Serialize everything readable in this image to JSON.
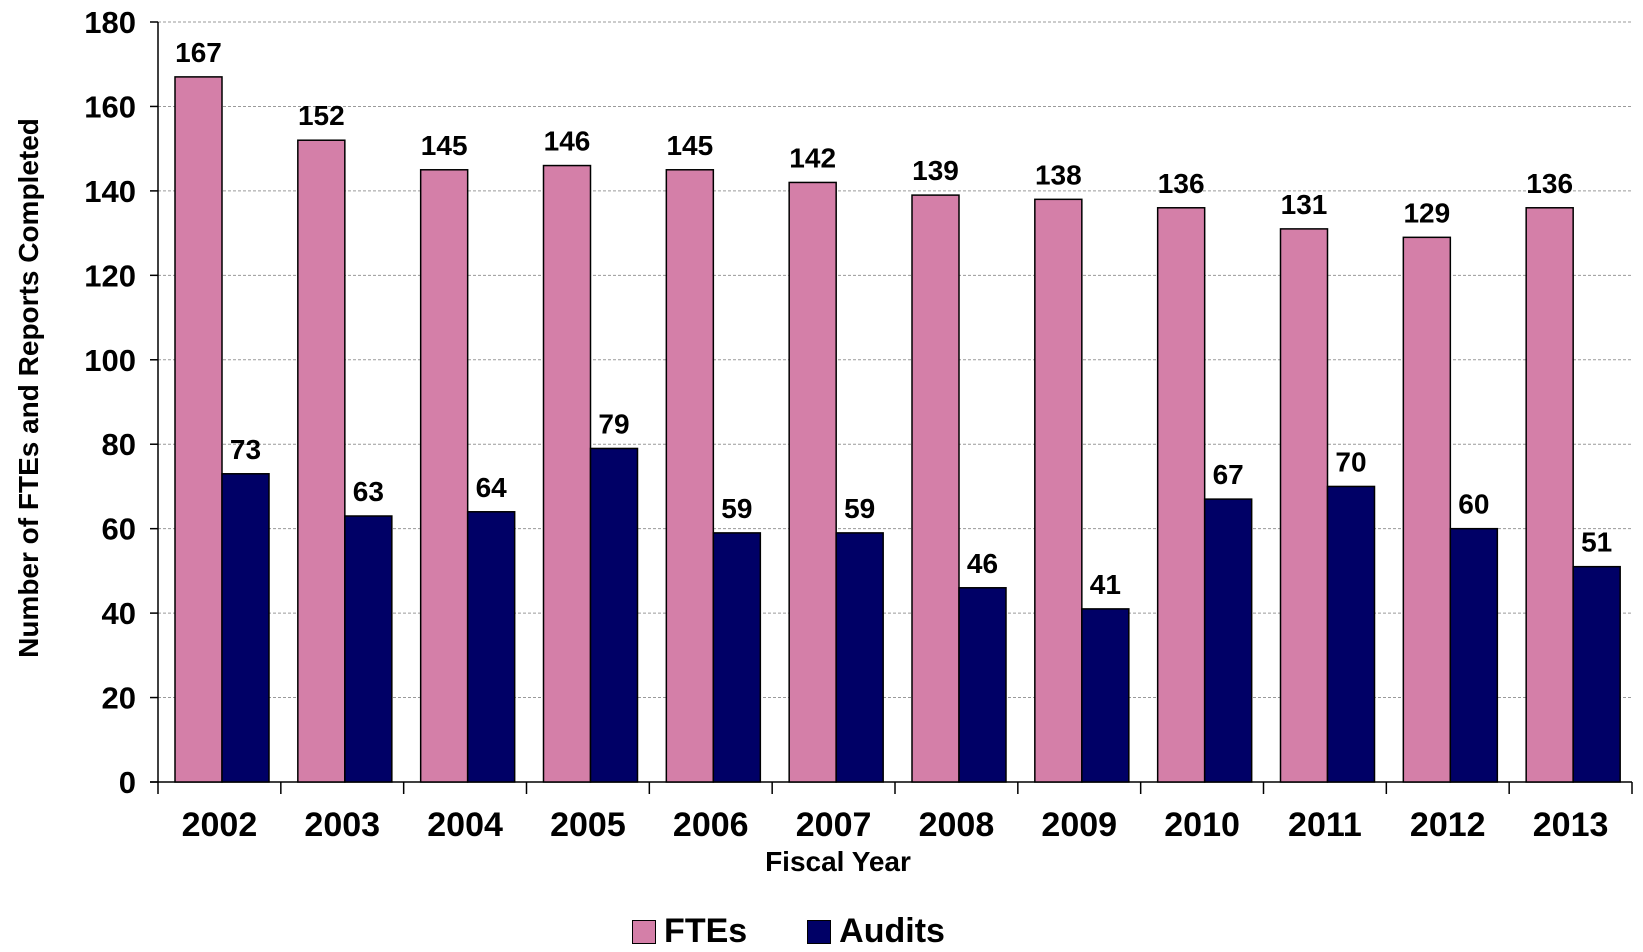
{
  "chart_data": {
    "type": "bar",
    "categories": [
      "2002",
      "2003",
      "2004",
      "2005",
      "2006",
      "2007",
      "2008",
      "2009",
      "2010",
      "2011",
      "2012",
      "2013"
    ],
    "series": [
      {
        "name": "FTEs",
        "color": "#d47fa8",
        "values": [
          167,
          152,
          145,
          146,
          145,
          142,
          139,
          138,
          136,
          131,
          129,
          136
        ]
      },
      {
        "name": "Audits",
        "color": "#000066",
        "values": [
          73,
          63,
          64,
          79,
          59,
          59,
          46,
          41,
          67,
          70,
          60,
          51
        ]
      }
    ],
    "title": "",
    "xlabel": "Fiscal Year",
    "ylabel": "Number of FTEs and Reports Completed",
    "ylim": [
      0,
      180
    ],
    "yticks": [
      0,
      20,
      40,
      60,
      80,
      100,
      120,
      140,
      160,
      180
    ],
    "grid": true,
    "legend_position": "bottom"
  }
}
